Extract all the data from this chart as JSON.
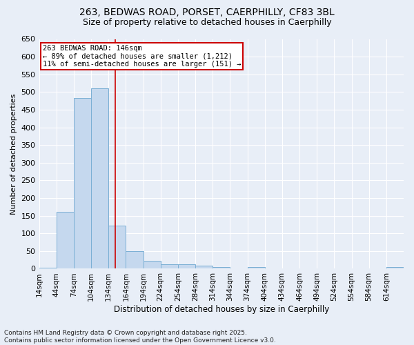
{
  "title_line1": "263, BEDWAS ROAD, PORSET, CAERPHILLY, CF83 3BL",
  "title_line2": "Size of property relative to detached houses in Caerphilly",
  "xlabel": "Distribution of detached houses by size in Caerphilly",
  "ylabel": "Number of detached properties",
  "footer_line1": "Contains HM Land Registry data © Crown copyright and database right 2025.",
  "footer_line2": "Contains public sector information licensed under the Open Government Licence v3.0.",
  "annotation_title": "263 BEDWAS ROAD: 146sqm",
  "annotation_line1": "← 89% of detached houses are smaller (1,212)",
  "annotation_line2": "11% of semi-detached houses are larger (151) →",
  "bin_edges": [
    14,
    44,
    74,
    104,
    134,
    164,
    194,
    224,
    254,
    284,
    314,
    344,
    374,
    404,
    434,
    464,
    494,
    524,
    554,
    584,
    614
  ],
  "bar_heights": [
    3,
    160,
    483,
    510,
    122,
    50,
    22,
    12,
    12,
    8,
    5,
    0,
    5,
    0,
    0,
    0,
    0,
    0,
    0,
    0,
    5
  ],
  "bar_color": "#c5d8ee",
  "bar_edge_color": "#7aafd4",
  "vline_color": "#cc0000",
  "vline_x": 146,
  "ylim": [
    0,
    650
  ],
  "yticks": [
    0,
    50,
    100,
    150,
    200,
    250,
    300,
    350,
    400,
    450,
    500,
    550,
    600,
    650
  ],
  "bg_color": "#e8eef7",
  "plot_bg_color": "#e8eef7",
  "grid_color": "#ffffff",
  "annotation_box_color": "#cc0000"
}
